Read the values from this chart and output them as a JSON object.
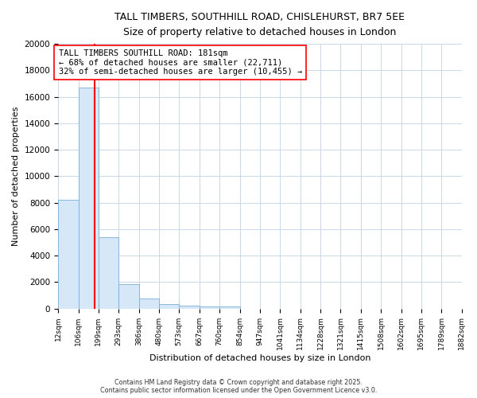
{
  "title_line1": "TALL TIMBERS, SOUTHHILL ROAD, CHISLEHURST, BR7 5EE",
  "title_line2": "Size of property relative to detached houses in London",
  "xlabel": "Distribution of detached houses by size in London",
  "ylabel": "Number of detached properties",
  "bar_edges": [
    12,
    106,
    199,
    293,
    386,
    480,
    573,
    667,
    760,
    854,
    947,
    1041,
    1134,
    1228,
    1321,
    1415,
    1508,
    1602,
    1695,
    1789,
    1882
  ],
  "bar_heights": [
    8200,
    16700,
    5400,
    1850,
    750,
    310,
    210,
    150,
    130,
    0,
    0,
    0,
    0,
    0,
    0,
    0,
    0,
    0,
    0,
    0
  ],
  "bar_color": "#d6e8f7",
  "bar_edge_color": "#7aafd4",
  "grid_color": "#c8d8ea",
  "property_line_x": 181,
  "property_line_color": "red",
  "ylim": [
    0,
    20000
  ],
  "yticks": [
    0,
    2000,
    4000,
    6000,
    8000,
    10000,
    12000,
    14000,
    16000,
    18000,
    20000
  ],
  "annotation_text": "TALL TIMBERS SOUTHILL ROAD: 181sqm\n← 68% of detached houses are smaller (22,711)\n32% of semi-detached houses are larger (10,455) →",
  "footer_line1": "Contains HM Land Registry data © Crown copyright and database right 2025.",
  "footer_line2": "Contains public sector information licensed under the Open Government Licence v3.0.",
  "bg_color": "#ffffff"
}
